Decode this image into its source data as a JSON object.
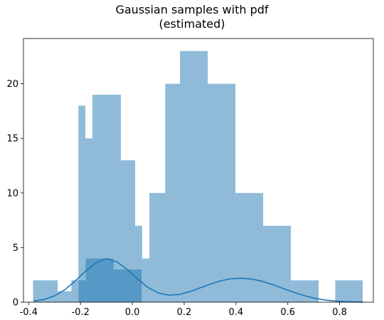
{
  "chart_data": {
    "type": "bar",
    "title": "Gaussian samples with pdf",
    "subtitle": "(estimated)",
    "xlabel": "",
    "ylabel": "",
    "xlim": [
      -0.42,
      0.93
    ],
    "ylim": [
      0,
      24.15
    ],
    "xticks": [
      "-0.4",
      "-0.2",
      "0.0",
      "0.2",
      "0.4",
      "0.6",
      "0.8"
    ],
    "yticks": [
      "0",
      "5",
      "10",
      "15",
      "20"
    ],
    "grid": false,
    "colors": {
      "hist": "#1f77b4",
      "line": "#1f77b4"
    },
    "series": [
      {
        "type": "histogram",
        "bin_edges": [
          -0.208,
          -0.181,
          -0.154,
          -0.099,
          -0.044,
          0.011,
          0.038,
          0.066,
          0.127,
          0.184,
          0.291,
          0.398,
          0.505,
          0.612,
          0.719
        ],
        "counts": [
          18,
          15,
          19,
          19,
          13,
          7,
          4,
          10,
          20,
          23,
          20,
          10,
          7,
          2
        ],
        "opacity": 0.5
      },
      {
        "type": "histogram",
        "bin_edges": [
          -0.383,
          -0.288,
          -0.235,
          -0.18,
          -0.072,
          0.036,
          0.13,
          0.263,
          0.39,
          0.515,
          0.659,
          0.783,
          0.889
        ],
        "counts": [
          2,
          1,
          2,
          4,
          3,
          0,
          0,
          0,
          0,
          0,
          0,
          2
        ],
        "opacity": 0.5
      },
      {
        "type": "line",
        "x": [
          -0.38,
          -0.34,
          -0.3,
          -0.26,
          -0.22,
          -0.18,
          -0.14,
          -0.1,
          -0.06,
          -0.02,
          0.02,
          0.06,
          0.1,
          0.14,
          0.18,
          0.22,
          0.26,
          0.3,
          0.34,
          0.38,
          0.42,
          0.46,
          0.5,
          0.54,
          0.58,
          0.62,
          0.66,
          0.7,
          0.74,
          0.78,
          0.82,
          0.86,
          0.89
        ],
        "y": [
          0.1,
          0.25,
          0.58,
          1.15,
          1.95,
          2.85,
          3.6,
          4.0,
          3.7,
          3.0,
          2.15,
          1.35,
          0.85,
          0.65,
          0.7,
          0.95,
          1.3,
          1.65,
          1.95,
          2.15,
          2.2,
          2.12,
          1.92,
          1.62,
          1.27,
          0.93,
          0.62,
          0.38,
          0.21,
          0.11,
          0.05,
          0.02,
          0.01
        ]
      }
    ]
  }
}
